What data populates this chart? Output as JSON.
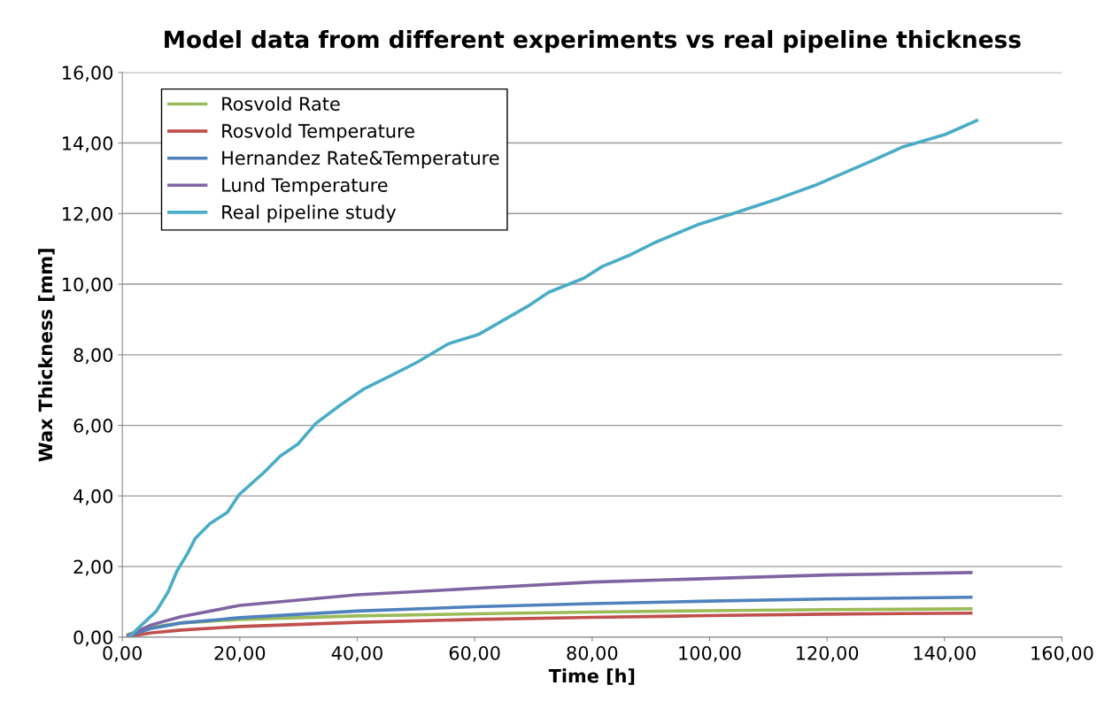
{
  "chart_data": {
    "type": "line",
    "title": "Model data from different experiments vs real pipeline thickness",
    "xlabel": "Time [h]",
    "ylabel": "Wax Thickness [mm]",
    "xlim": [
      0,
      160
    ],
    "ylim": [
      0,
      16
    ],
    "xticks": [
      {
        "value": 0,
        "label": "0,00"
      },
      {
        "value": 20,
        "label": "20,00"
      },
      {
        "value": 40,
        "label": "40,00"
      },
      {
        "value": 60,
        "label": "60,00"
      },
      {
        "value": 80,
        "label": "80,00"
      },
      {
        "value": 100,
        "label": "100,00"
      },
      {
        "value": 120,
        "label": "120,00"
      },
      {
        "value": 140,
        "label": "140,00"
      },
      {
        "value": 160,
        "label": "160,00"
      }
    ],
    "yticks": [
      {
        "value": 0,
        "label": "0,00"
      },
      {
        "value": 2,
        "label": "2,00"
      },
      {
        "value": 4,
        "label": "4,00"
      },
      {
        "value": 6,
        "label": "6,00"
      },
      {
        "value": 8,
        "label": "8,00"
      },
      {
        "value": 10,
        "label": "10,00"
      },
      {
        "value": 12,
        "label": "12,00"
      },
      {
        "value": 14,
        "label": "14,00"
      },
      {
        "value": 16,
        "label": "16,00"
      }
    ],
    "grid": "y",
    "legend": "top left",
    "marker": "none",
    "line_style": "solid",
    "series": [
      {
        "name": "Rosvold Rate",
        "color": "#9bbb59",
        "x": [
          1,
          5,
          10,
          20,
          40,
          60,
          80,
          100,
          120,
          144.5
        ],
        "values": [
          0.08,
          0.28,
          0.4,
          0.5,
          0.6,
          0.66,
          0.71,
          0.75,
          0.78,
          0.8
        ]
      },
      {
        "name": "Rosvold Temperature",
        "color": "#c0504d",
        "x": [
          1,
          5,
          10,
          20,
          40,
          60,
          80,
          100,
          120,
          144.5
        ],
        "values": [
          0.02,
          0.12,
          0.2,
          0.3,
          0.42,
          0.5,
          0.56,
          0.61,
          0.65,
          0.68
        ]
      },
      {
        "name": "Hernandez Rate&Temperature",
        "color": "#4f81bd",
        "x": [
          1,
          5,
          10,
          20,
          40,
          60,
          80,
          100,
          120,
          144.5
        ],
        "values": [
          0.03,
          0.25,
          0.4,
          0.55,
          0.74,
          0.86,
          0.95,
          1.02,
          1.08,
          1.13
        ]
      },
      {
        "name": "Lund Temperature",
        "color": "#8064a2",
        "x": [
          1,
          5,
          10,
          20,
          40,
          60,
          80,
          100,
          120,
          144.5
        ],
        "values": [
          0.05,
          0.35,
          0.58,
          0.9,
          1.2,
          1.38,
          1.56,
          1.66,
          1.76,
          1.83
        ]
      },
      {
        "name": "Real pipeline study",
        "color": "#4bacc6",
        "x": [
          1.3,
          5.8,
          7.8,
          9.3,
          11.1,
          12.4,
          14.9,
          17.9,
          19.9,
          23.9,
          26.9,
          29.9,
          32.9,
          37.0,
          41.0,
          45.5,
          50.0,
          55.5,
          60.6,
          69.0,
          72.6,
          78.6,
          81.7,
          86.5,
          90.7,
          97.9,
          104,
          111.8,
          117.8,
          126.9,
          132.9,
          140.1,
          145.5
        ],
        "values": [
          0.03,
          0.74,
          1.28,
          1.87,
          2.37,
          2.79,
          3.21,
          3.54,
          4.04,
          4.63,
          5.13,
          5.47,
          6.05,
          6.56,
          7.02,
          7.39,
          7.77,
          8.31,
          8.57,
          9.37,
          9.77,
          10.17,
          10.5,
          10.83,
          11.18,
          11.68,
          12.0,
          12.43,
          12.79,
          13.44,
          13.89,
          14.24,
          14.64
        ]
      }
    ]
  }
}
